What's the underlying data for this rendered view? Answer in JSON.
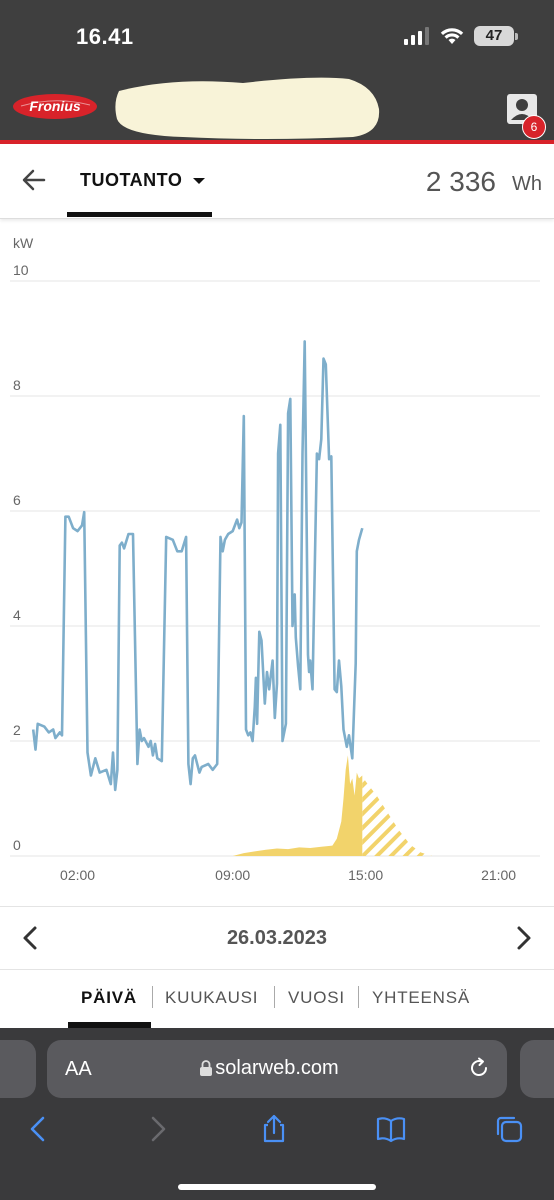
{
  "status_bar": {
    "time": "16.41",
    "battery": "47"
  },
  "header": {
    "brand": "Fronius",
    "notification_count": "6"
  },
  "toolbar": {
    "tab_label": "TUOTANTO",
    "total_value": "2 336",
    "total_unit": "Wh"
  },
  "chart_data": {
    "type": "area",
    "ylabel": "kW",
    "ylim": [
      0,
      10
    ],
    "yticks": [
      "10",
      "8",
      "6",
      "4",
      "2",
      "0"
    ],
    "xlim": [
      -1.5,
      23.5
    ],
    "xticks": [
      {
        "label": "02:00",
        "value": 2
      },
      {
        "label": "09:00",
        "value": 9
      },
      {
        "label": "15:00",
        "value": 15
      },
      {
        "label": "21:00",
        "value": 21
      }
    ],
    "colors": {
      "consumption": "#7eaecb",
      "production": "#f2d36b",
      "forecast": "#f2d36b",
      "grid": "#e6e6e6"
    },
    "series": [
      {
        "key": "consumption",
        "values": [
          [
            0.0,
            2.2
          ],
          [
            0.1,
            1.85
          ],
          [
            0.2,
            2.3
          ],
          [
            0.5,
            2.25
          ],
          [
            0.7,
            2.15
          ],
          [
            0.9,
            2.2
          ],
          [
            1.0,
            2.05
          ],
          [
            1.2,
            2.15
          ],
          [
            1.3,
            2.1
          ],
          [
            1.45,
            5.9
          ],
          [
            1.6,
            5.9
          ],
          [
            1.8,
            5.7
          ],
          [
            2.0,
            5.65
          ],
          [
            2.2,
            5.75
          ],
          [
            2.3,
            5.98
          ],
          [
            2.45,
            1.8
          ],
          [
            2.6,
            1.4
          ],
          [
            2.8,
            1.7
          ],
          [
            3.0,
            1.45
          ],
          [
            3.3,
            1.5
          ],
          [
            3.5,
            1.25
          ],
          [
            3.6,
            1.8
          ],
          [
            3.7,
            1.15
          ],
          [
            3.8,
            1.5
          ],
          [
            3.9,
            5.4
          ],
          [
            4.0,
            5.45
          ],
          [
            4.1,
            5.35
          ],
          [
            4.3,
            5.6
          ],
          [
            4.5,
            5.6
          ],
          [
            4.7,
            1.6
          ],
          [
            4.8,
            2.2
          ],
          [
            4.9,
            2.0
          ],
          [
            5.0,
            2.05
          ],
          [
            5.2,
            1.9
          ],
          [
            5.3,
            2.0
          ],
          [
            5.4,
            1.75
          ],
          [
            5.5,
            1.95
          ],
          [
            5.6,
            1.7
          ],
          [
            5.8,
            1.65
          ],
          [
            6.0,
            5.55
          ],
          [
            6.3,
            5.5
          ],
          [
            6.5,
            5.3
          ],
          [
            6.7,
            5.3
          ],
          [
            6.9,
            5.55
          ],
          [
            7.0,
            1.6
          ],
          [
            7.1,
            1.25
          ],
          [
            7.2,
            1.7
          ],
          [
            7.3,
            1.75
          ],
          [
            7.5,
            1.45
          ],
          [
            7.6,
            1.55
          ],
          [
            7.9,
            1.6
          ],
          [
            8.1,
            1.5
          ],
          [
            8.3,
            1.6
          ],
          [
            8.45,
            5.55
          ],
          [
            8.55,
            5.3
          ],
          [
            8.65,
            5.5
          ],
          [
            8.8,
            5.6
          ],
          [
            9.0,
            5.65
          ],
          [
            9.2,
            5.85
          ],
          [
            9.3,
            5.7
          ],
          [
            9.4,
            5.8
          ],
          [
            9.5,
            7.65
          ],
          [
            9.6,
            2.2
          ],
          [
            9.7,
            2.1
          ],
          [
            9.8,
            2.15
          ],
          [
            9.9,
            2.0
          ],
          [
            10.0,
            2.6
          ],
          [
            10.05,
            3.1
          ],
          [
            10.1,
            2.3
          ],
          [
            10.2,
            3.9
          ],
          [
            10.3,
            3.75
          ],
          [
            10.45,
            2.65
          ],
          [
            10.55,
            3.2
          ],
          [
            10.65,
            2.9
          ],
          [
            10.8,
            3.4
          ],
          [
            10.9,
            2.4
          ],
          [
            11.0,
            3.0
          ],
          [
            11.05,
            7.0
          ],
          [
            11.15,
            7.5
          ],
          [
            11.25,
            2.0
          ],
          [
            11.4,
            2.3
          ],
          [
            11.5,
            7.7
          ],
          [
            11.6,
            7.95
          ],
          [
            11.7,
            4.0
          ],
          [
            11.8,
            4.55
          ],
          [
            11.85,
            3.8
          ],
          [
            11.95,
            3.3
          ],
          [
            12.05,
            2.9
          ],
          [
            12.15,
            7.0
          ],
          [
            12.25,
            8.95
          ],
          [
            12.4,
            3.5
          ],
          [
            12.45,
            3.2
          ],
          [
            12.5,
            3.4
          ],
          [
            12.6,
            2.9
          ],
          [
            12.8,
            7.0
          ],
          [
            12.9,
            6.9
          ],
          [
            13.0,
            7.25
          ],
          [
            13.1,
            8.65
          ],
          [
            13.2,
            8.55
          ],
          [
            13.35,
            6.9
          ],
          [
            13.45,
            6.95
          ],
          [
            13.6,
            2.9
          ],
          [
            13.7,
            2.85
          ],
          [
            13.8,
            3.4
          ],
          [
            13.9,
            2.95
          ],
          [
            14.0,
            2.2
          ],
          [
            14.15,
            1.9
          ],
          [
            14.25,
            2.1
          ],
          [
            14.4,
            1.7
          ],
          [
            14.55,
            3.35
          ],
          [
            14.6,
            5.3
          ],
          [
            14.7,
            5.5
          ],
          [
            14.85,
            5.7
          ]
        ]
      },
      {
        "key": "production",
        "values": [
          [
            9.0,
            0
          ],
          [
            9.5,
            0.05
          ],
          [
            10.0,
            0.08
          ],
          [
            10.5,
            0.11
          ],
          [
            11.0,
            0.13
          ],
          [
            11.5,
            0.12
          ],
          [
            12.0,
            0.15
          ],
          [
            12.5,
            0.14
          ],
          [
            13.0,
            0.16
          ],
          [
            13.5,
            0.18
          ],
          [
            13.7,
            0.3
          ],
          [
            13.9,
            0.6
          ],
          [
            14.0,
            1.0
          ],
          [
            14.1,
            1.5
          ],
          [
            14.2,
            1.75
          ],
          [
            14.3,
            1.25
          ],
          [
            14.4,
            1.35
          ],
          [
            14.5,
            1.05
          ],
          [
            14.6,
            1.45
          ],
          [
            14.7,
            1.35
          ],
          [
            14.85,
            1.4
          ]
        ]
      },
      {
        "key": "forecast",
        "values": [
          [
            14.85,
            1.4
          ],
          [
            15.0,
            1.3
          ],
          [
            15.5,
            1.05
          ],
          [
            16.0,
            0.75
          ],
          [
            16.5,
            0.45
          ],
          [
            17.0,
            0.2
          ],
          [
            17.5,
            0.06
          ],
          [
            18.0,
            0
          ]
        ]
      }
    ]
  },
  "date_nav": {
    "date": "26.03.2023"
  },
  "period_tabs": {
    "day": "PÄIVÄ",
    "month": "KUUKAUSI",
    "year": "VUOSI",
    "total": "YHTEENSÄ"
  },
  "browser": {
    "aa": "AA",
    "url": "solarweb.com"
  }
}
